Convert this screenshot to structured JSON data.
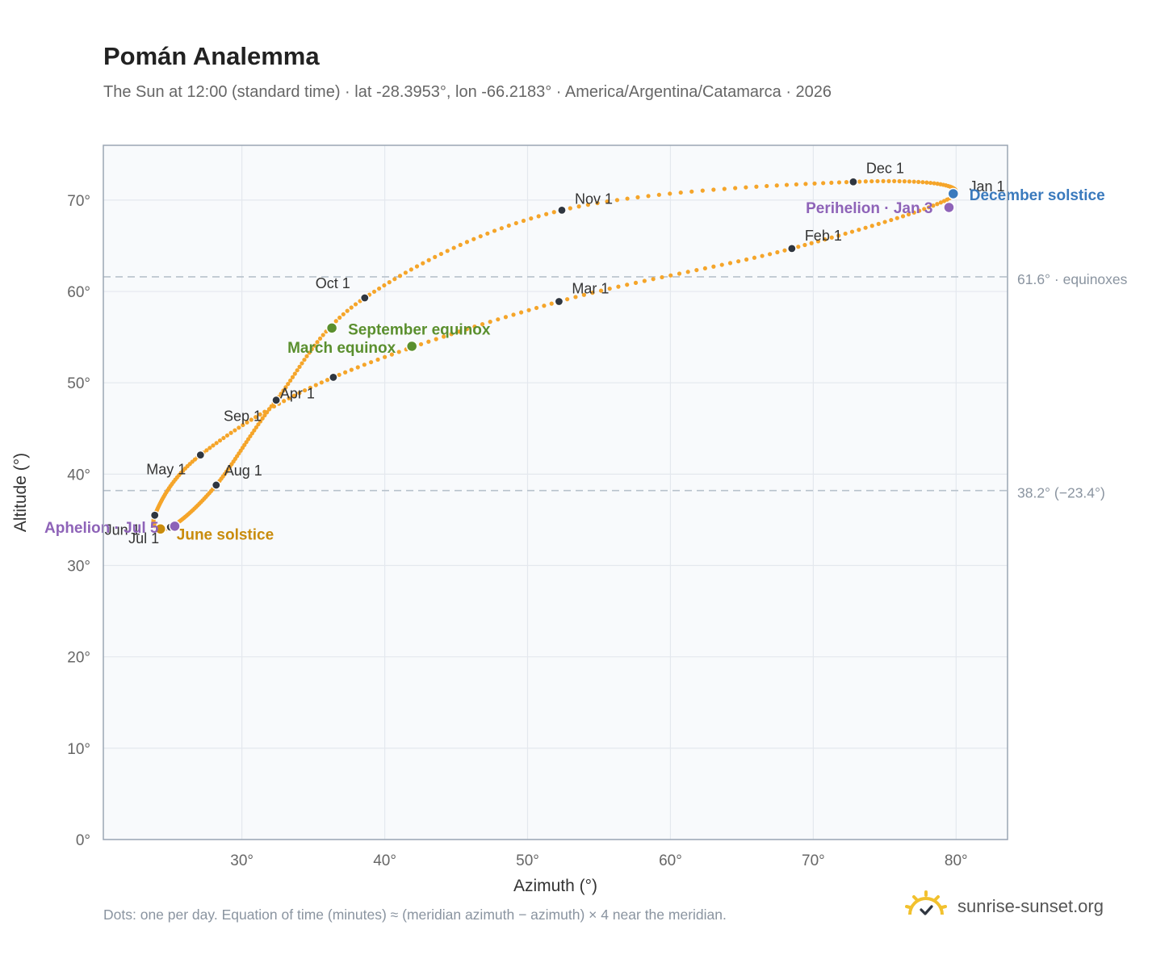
{
  "header": {
    "title": "Pomán Analemma",
    "subtitle": "The Sun at 12:00 (standard time) · lat -28.3953°, lon -66.2183° · America/Argentina/Catamarca · 2026"
  },
  "footer": {
    "note": "Dots: one per day. Equation of time (minutes) ≈ (meridian azimuth − azimuth) × 4 near the meridian.",
    "brand": "sunrise-sunset.org"
  },
  "colors": {
    "curve": "#f5a52a",
    "month_marker": "#2f3640",
    "equinox": "#5a8f2e",
    "june_solstice": "#c98c0c",
    "december_solstice": "#3a7abd",
    "apsis": "#8e63b8",
    "reference_line": "#b8c2cc",
    "plot_background": "#f8fafc",
    "grid": "#e4e8ee",
    "frame": "#9aa6b4",
    "logo": "#f2c12e"
  },
  "chart_data": {
    "type": "scatter",
    "xlabel": "Azimuth (°)",
    "ylabel": "Altitude (°)",
    "xlim": [
      20.3,
      83.6
    ],
    "ylim": [
      0,
      76
    ],
    "x_ticks": [
      30,
      40,
      50,
      60,
      70,
      80
    ],
    "x_tick_labels": [
      "30°",
      "40°",
      "50°",
      "60°",
      "70°",
      "80°"
    ],
    "y_ticks": [
      0,
      10,
      20,
      30,
      40,
      50,
      60,
      70
    ],
    "y_tick_labels": [
      "0°",
      "10°",
      "20°",
      "30°",
      "40°",
      "50°",
      "60°",
      "70°"
    ],
    "grid": true,
    "month_markers": [
      {
        "label": "Jan 1",
        "x": 79.9,
        "y": 70.6
      },
      {
        "label": "Feb 1",
        "x": 68.5,
        "y": 64.7
      },
      {
        "label": "Mar 1",
        "x": 52.2,
        "y": 58.9
      },
      {
        "label": "Apr 1",
        "x": 36.4,
        "y": 50.6
      },
      {
        "label": "May 1",
        "x": 27.1,
        "y": 42.1
      },
      {
        "label": "Jun 1",
        "x": 23.9,
        "y": 35.5
      },
      {
        "label": "Jul 1",
        "x": 25.0,
        "y": 34.2
      },
      {
        "label": "Aug 1",
        "x": 28.2,
        "y": 38.8
      },
      {
        "label": "Sep 1",
        "x": 32.4,
        "y": 48.1
      },
      {
        "label": "Oct 1",
        "x": 38.6,
        "y": 59.3
      },
      {
        "label": "Nov 1",
        "x": 52.4,
        "y": 68.9
      },
      {
        "label": "Dec 1",
        "x": 72.8,
        "y": 72.0
      }
    ],
    "events": [
      {
        "label": "March equinox",
        "x": 41.9,
        "y": 54.0,
        "kind": "equinox"
      },
      {
        "label": "September equinox",
        "x": 36.3,
        "y": 56.0,
        "kind": "equinox"
      },
      {
        "label": "June solstice",
        "x": 24.3,
        "y": 34.0,
        "kind": "june_solstice"
      },
      {
        "label": "December solstice",
        "x": 79.8,
        "y": 70.7,
        "kind": "december_solstice"
      },
      {
        "label": "Perihelion · Jan 3",
        "x": 79.5,
        "y": 69.2,
        "kind": "apsis"
      },
      {
        "label": "Aphelion · Jul 5",
        "x": 25.3,
        "y": 34.3,
        "kind": "apsis"
      }
    ],
    "reference_lines": [
      {
        "label": "61.6° · equinoxes",
        "y": 61.6
      },
      {
        "label": "38.2° (−23.4°)",
        "y": 38.2
      }
    ]
  }
}
